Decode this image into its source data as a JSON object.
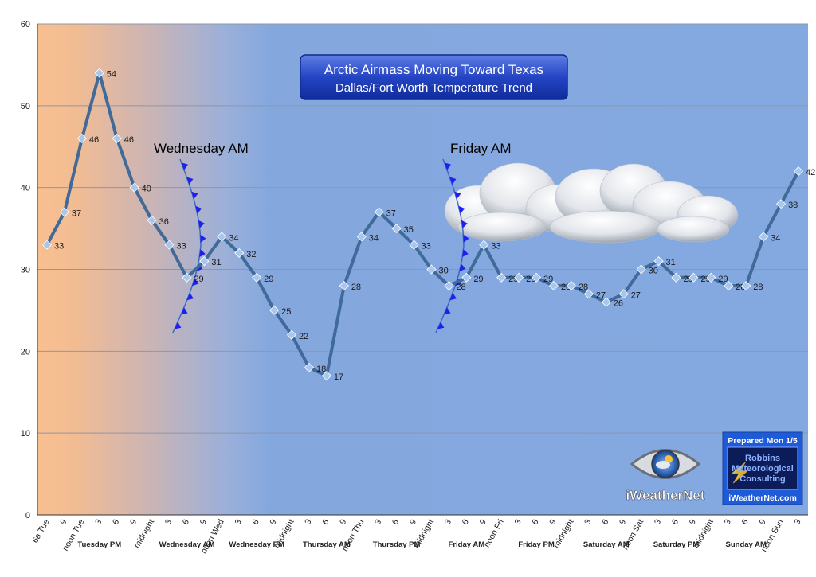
{
  "chart_data": {
    "type": "line",
    "title": "Arctic Airmass Moving Toward Texas",
    "subtitle": "Dallas/Fort Worth Temperature Trend",
    "ylim": [
      0,
      60
    ],
    "yticks": [
      0,
      10,
      20,
      30,
      40,
      50,
      60
    ],
    "grid": true,
    "x_tick_labels": [
      "6a Tue",
      "9",
      "noon Tue",
      "3",
      "6",
      "9",
      "midnight",
      "3",
      "6",
      "9",
      "noon Wed",
      "3",
      "6",
      "9",
      "midnight",
      "3",
      "6",
      "9",
      "noon Thu",
      "3",
      "6",
      "9",
      "midnight",
      "3",
      "6",
      "9",
      "noon Fri",
      "3",
      "6",
      "9",
      "midnight",
      "3",
      "6",
      "9",
      "noon Sat",
      "3",
      "6",
      "9",
      "midnight",
      "3",
      "6",
      "9",
      "noon Sun",
      "3"
    ],
    "period_labels": [
      {
        "label": "Tuesday PM",
        "x": 3
      },
      {
        "label": "Wednesday AM",
        "x": 8
      },
      {
        "label": "Wednesday PM",
        "x": 12
      },
      {
        "label": "Thursday AM",
        "x": 16
      },
      {
        "label": "Thursday PM",
        "x": 20
      },
      {
        "label": "Friday AM",
        "x": 24
      },
      {
        "label": "Friday PM",
        "x": 28
      },
      {
        "label": "Saturday AM",
        "x": 32
      },
      {
        "label": "Saturday PM",
        "x": 36
      },
      {
        "label": "Sunday AM",
        "x": 40
      }
    ],
    "series": [
      {
        "values": [
          33,
          37,
          46,
          54,
          46,
          40,
          36,
          33,
          29,
          31,
          34,
          32,
          29,
          25,
          22,
          18,
          17,
          28,
          34,
          37,
          35,
          33,
          30,
          28,
          29,
          33,
          29,
          29,
          29,
          28,
          28,
          27,
          26,
          27,
          30,
          31,
          29,
          29,
          29,
          28,
          28,
          34,
          38,
          42
        ]
      }
    ],
    "annotations": [
      {
        "text": "Wednesday AM",
        "x": 9
      },
      {
        "text": "Friday AM",
        "x": 25
      }
    ],
    "colors": {
      "line": "#3f6a99",
      "marker": "#a9c6ec",
      "cold_front": "#1f1ff0",
      "warm_fill": "#f6bf92",
      "cold_fill": "#7ea6de"
    }
  },
  "branding": {
    "logo_text": "iWeatherNet",
    "prepared": "Prepared Mon 1/5",
    "company_line1": "Robbins",
    "company_line2": "Meteorological",
    "company_line3": "Consulting",
    "site": "iWeatherNet.com"
  }
}
